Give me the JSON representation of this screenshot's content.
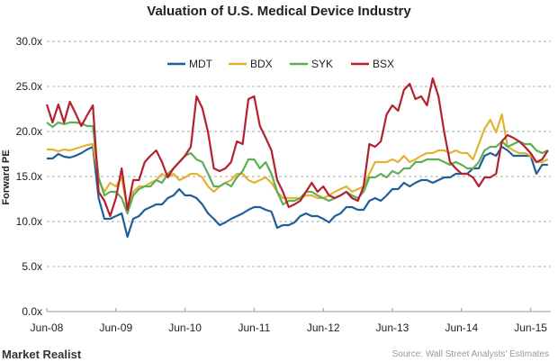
{
  "chart_data": {
    "type": "line",
    "title": "Valuation of U.S. Medical Device Industry",
    "ylabel": "Forward PE",
    "xlabel": "",
    "ylim": [
      0,
      30
    ],
    "yticks": [
      "0.0x",
      "5.0x",
      "10.0x",
      "15.0x",
      "20.0x",
      "25.0x",
      "30.0x"
    ],
    "xticks": [
      "Jun-08",
      "Jun-09",
      "Jun-10",
      "Jun-11",
      "Jun-12",
      "Jun-13",
      "Jun-14",
      "Jun-15"
    ],
    "x_start": "2008-06",
    "x_frequency": "monthly",
    "grid": "horizontal dashed",
    "legend_position": "top",
    "series": [
      {
        "name": "MDT",
        "color": "#1f5f99",
        "values": [
          17,
          17,
          17.5,
          17.2,
          17.1,
          17.3,
          17.6,
          18,
          18.3,
          12.6,
          10.3,
          10.3,
          10.6,
          10.9,
          8.3,
          10.3,
          10.6,
          11.3,
          11.6,
          11.9,
          11.9,
          12.6,
          12.9,
          13.6,
          12.9,
          12.9,
          12.6,
          11.9,
          10.9,
          10.3,
          9.6,
          9.9,
          10.3,
          10.6,
          10.9,
          11.3,
          11.6,
          11.6,
          11.3,
          11.1,
          9.3,
          9.6,
          9.6,
          9.9,
          10.6,
          10.9,
          10.6,
          10.6,
          10.3,
          9.9,
          10.6,
          10.9,
          11.6,
          11.6,
          11.3,
          11.3,
          12.3,
          12.6,
          12.3,
          12.9,
          13.6,
          13.6,
          14.3,
          13.9,
          14.3,
          14.6,
          14.6,
          14.3,
          14.6,
          14.9,
          14.9,
          15.3,
          15.3,
          15.3,
          15.9,
          15.9,
          17.3,
          17.6,
          17.3,
          18.3,
          17.9,
          17.3,
          17.3,
          17.3,
          17.3,
          15.3,
          16.3,
          16.3
        ]
      },
      {
        "name": "BDX",
        "color": "#e3b232",
        "values": [
          18,
          18,
          17.8,
          18,
          17.9,
          18.1,
          18.3,
          18.5,
          18.6,
          14.6,
          13.3,
          14.3,
          13.9,
          14.9,
          11.3,
          13.3,
          13.9,
          13.9,
          14.3,
          14.6,
          15.3,
          14.9,
          15.3,
          14.6,
          14.9,
          15.3,
          15.3,
          14.9,
          13.9,
          13.3,
          13.9,
          14.3,
          14.6,
          15.3,
          15.3,
          14.6,
          14.3,
          14.6,
          14.9,
          14.3,
          13.3,
          12.6,
          12.6,
          12.6,
          12.6,
          12.9,
          12.9,
          12.6,
          12.6,
          12.9,
          13.3,
          13.6,
          13.9,
          13.3,
          13.6,
          13.9,
          15.3,
          16.6,
          16.6,
          16.6,
          16.9,
          16.6,
          17.3,
          16.6,
          16.9,
          17.3,
          17.6,
          17.6,
          17.9,
          17.9,
          17.6,
          17.9,
          17.6,
          17.6,
          16.9,
          18.6,
          20.3,
          21.3,
          19.9,
          21.9,
          18.3,
          17.9,
          17.6,
          17.6,
          17.3,
          16.6,
          16.6,
          16.9
        ]
      },
      {
        "name": "SYK",
        "color": "#5fae57",
        "values": [
          21,
          20.5,
          21,
          20.8,
          21,
          21,
          20.9,
          20.6,
          20.6,
          14.9,
          12.9,
          13.3,
          13.3,
          12.6,
          10.9,
          12.9,
          13.6,
          13.9,
          13.9,
          14.6,
          14.3,
          15.3,
          15.9,
          16.6,
          17.3,
          17.6,
          16.9,
          16.6,
          15.3,
          13.9,
          13.9,
          14.3,
          13.9,
          14.9,
          15.6,
          16.9,
          16.9,
          15.9,
          16.6,
          15.3,
          13.3,
          11.9,
          12.3,
          12.3,
          12.6,
          13.3,
          13.3,
          12.9,
          12.6,
          12.3,
          12.6,
          12.9,
          13.3,
          12.9,
          12.6,
          13.3,
          14.9,
          14.9,
          15.3,
          14.9,
          15.6,
          15.3,
          15.9,
          15.9,
          16.6,
          16.6,
          16.9,
          16.9,
          16.9,
          16.6,
          16.3,
          16.6,
          16.3,
          15.9,
          15.9,
          16.6,
          17.9,
          18.3,
          18.3,
          18.9,
          18.3,
          18.6,
          18.9,
          18.6,
          18.6,
          17.9,
          17.6,
          17.9
        ]
      },
      {
        "name": "BSX",
        "color": "#b5202e",
        "values": [
          23,
          21,
          23,
          21,
          23.3,
          22,
          20.6,
          21.8,
          22.9,
          13.3,
          12.3,
          10.6,
          12.6,
          15.9,
          11.3,
          14.6,
          14.6,
          16.6,
          17.3,
          17.9,
          16.6,
          14.9,
          15.9,
          16.6,
          17.3,
          18.3,
          23.9,
          22.6,
          19.9,
          15.9,
          15.6,
          15.9,
          16.6,
          18.9,
          18.6,
          23.6,
          23.9,
          20.6,
          19.3,
          17.9,
          14.6,
          13.3,
          11.6,
          11.9,
          12.3,
          13.3,
          14.3,
          13.3,
          13.9,
          12.9,
          12.6,
          12.9,
          13.3,
          12.6,
          12.3,
          13.9,
          18.6,
          18.3,
          18.9,
          21.9,
          22.9,
          22.3,
          24.6,
          25.3,
          23.6,
          23.9,
          22.9,
          25.9,
          23.9,
          19.9,
          16.6,
          15.9,
          15.3,
          15.3,
          14.9,
          13.9,
          14.9,
          14.9,
          15.3,
          18.9,
          19.6,
          19.3,
          18.9,
          18.3,
          17.6,
          16.6,
          16.9,
          17.9
        ]
      }
    ]
  },
  "footer": {
    "brand": "Market Realist",
    "source": "Source: Wall Street Analysts' Estimates"
  }
}
